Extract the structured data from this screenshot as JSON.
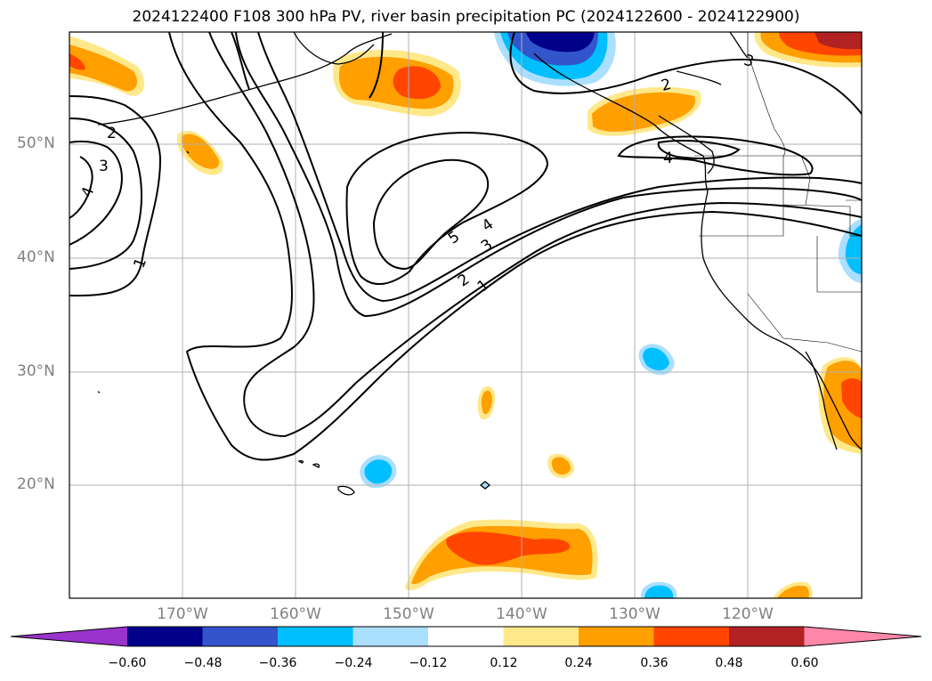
{
  "title": "2024122400 F108 300 hPa PV, river basin precipitation PC (2024122600 - 2024122900)",
  "lat_labels": [
    "50°N",
    "40°N",
    "30°N",
    "20°N"
  ],
  "lon_labels": [
    "170°W",
    "160°W",
    "150°W",
    "140°W",
    "130°W",
    "120°W"
  ],
  "pv_contour_labels": [
    "1",
    "2",
    "3",
    "4",
    "5",
    "4",
    "3",
    "2",
    "1",
    "2",
    "3",
    "4"
  ],
  "colorbar": {
    "ticks": [
      "−0.60",
      "−0.48",
      "−0.36",
      "−0.24",
      "−0.12",
      "0.12",
      "0.24",
      "0.36",
      "0.48",
      "0.60"
    ],
    "colors": [
      "#9933cc",
      "#00008b",
      "#3355cc",
      "#00bfff",
      "#aadfff",
      "#ffffff",
      "#ffe88a",
      "#ff9f00",
      "#ff4500",
      "#b22222",
      "#ff88aa"
    ]
  },
  "colors": {
    "gridline": "#b0b0b0",
    "axis_label": "#808080",
    "contour": "#000000"
  }
}
